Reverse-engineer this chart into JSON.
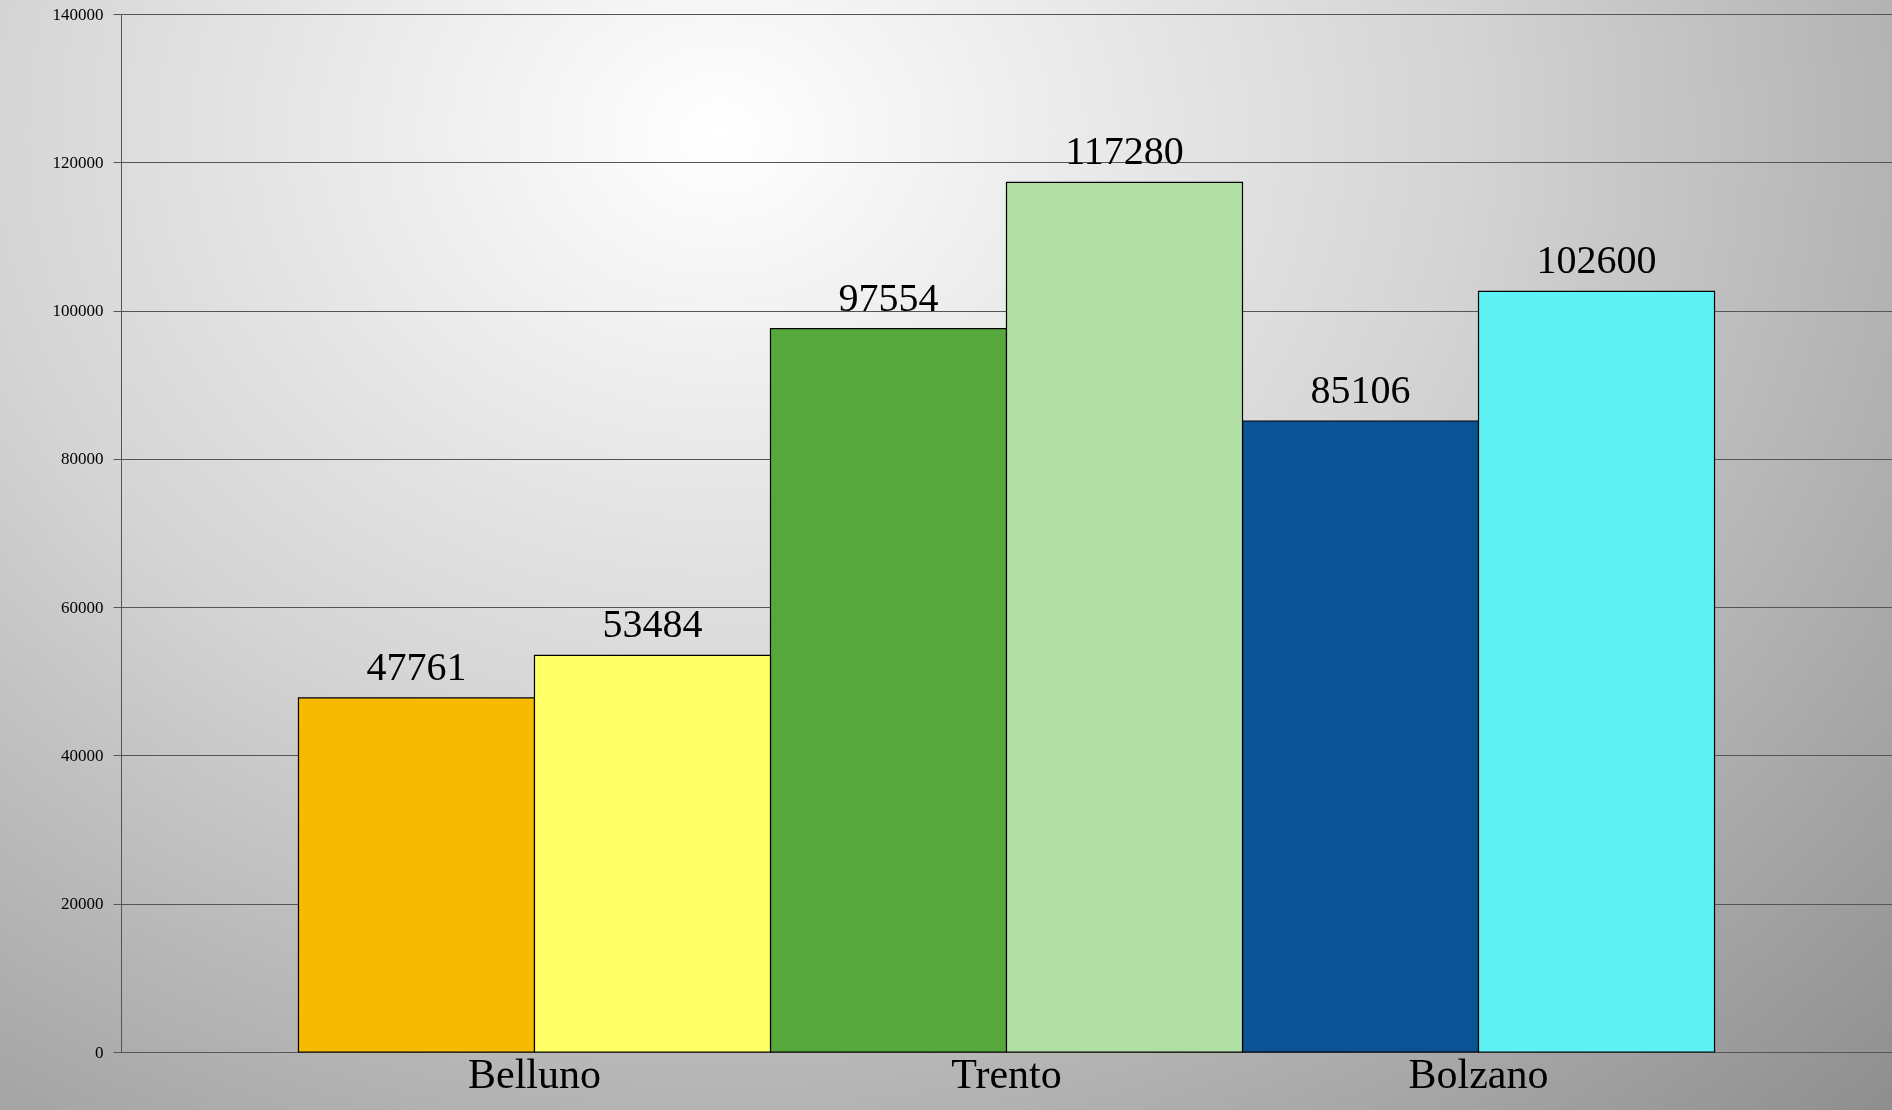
{
  "chart_data": {
    "type": "bar",
    "categories": [
      "Belluno",
      "Trento",
      "Bolzano"
    ],
    "series": [
      {
        "colors": [
          "#f6bb00",
          "#57a83c",
          "#0b5394"
        ],
        "values": [
          47761,
          97554,
          85106
        ]
      },
      {
        "colors": [
          "#ffff66",
          "#b2dfa6",
          "#5ef2f5"
        ],
        "values": [
          53484,
          117280,
          102600
        ]
      }
    ],
    "ylim": [
      0,
      140000
    ],
    "yticks": [
      0,
      20000,
      40000,
      60000,
      80000,
      100000,
      120000,
      140000
    ],
    "grid": "y",
    "data_labels": true
  }
}
